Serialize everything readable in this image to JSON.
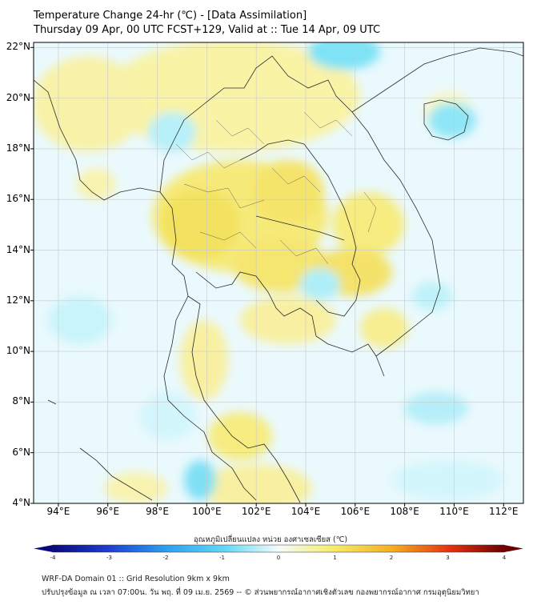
{
  "header": {
    "title": "Temperature Change 24-hr (℃) - [Data Assimilation]",
    "subtitle": "Thursday 09 Apr, 00 UTC FCST+129, Valid at :: Tue 14 Apr, 09 UTC"
  },
  "map": {
    "lat_labels": [
      "22°N",
      "20°N",
      "18°N",
      "16°N",
      "14°N",
      "12°N",
      "10°N",
      "8°N",
      "6°N",
      "4°N"
    ],
    "lat_values": [
      22,
      20,
      18,
      16,
      14,
      12,
      10,
      8,
      6,
      4
    ],
    "lon_labels": [
      "94°E",
      "96°E",
      "98°E",
      "100°E",
      "102°E",
      "104°E",
      "106°E",
      "108°E",
      "110°E",
      "112°E"
    ],
    "lon_values": [
      94,
      96,
      98,
      100,
      102,
      104,
      106,
      108,
      110,
      112
    ],
    "lat_range": [
      4,
      22.2
    ],
    "lon_range": [
      93,
      112.8
    ],
    "grid": true,
    "colors": {
      "border": "#2b2b2b",
      "grid": "#c8c8c8",
      "warm": "#f7ef8a",
      "cool": "#7fe6f5",
      "base": "#eaf9fd"
    }
  },
  "colorbar": {
    "title": "อุณหภูมิเปลี่ยนแปลง หน่วย องศาเซลเซียส (℃)",
    "ticks": [
      "-4",
      "-3",
      "-2",
      "-1",
      "0",
      "1",
      "2",
      "3",
      "4"
    ],
    "tick_values": [
      -4,
      -3,
      -2,
      -1,
      0,
      1,
      2,
      3,
      4
    ],
    "range": [
      -4,
      4
    ]
  },
  "footer": {
    "line1": "WRF-DA Domain 01 :: Grid Resolution 9km x 9km",
    "line2": "ปรับปรุงข้อมูล ณ เวลา 07:00น. วัน พฤ. ที่ 09 เม.ย. 2569 -- © ส่วนพยากรณ์อากาศเชิงตัวเลข กองพยากรณ์อากาศ กรมอุตุนิยมวิทยา"
  }
}
